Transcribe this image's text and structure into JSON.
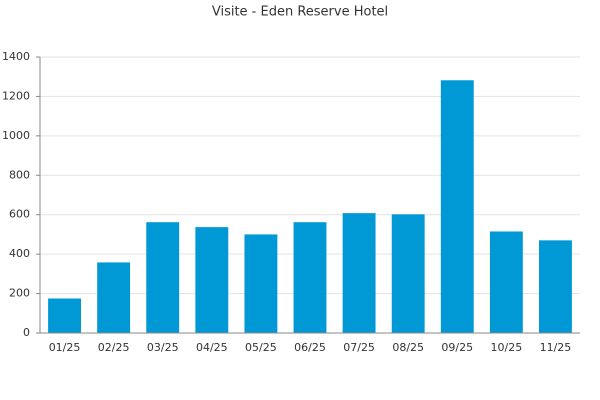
{
  "chart_data": {
    "type": "bar",
    "title": "Visite - Eden Reserve Hotel",
    "categories": [
      "01/25",
      "02/25",
      "03/25",
      "04/25",
      "05/25",
      "06/25",
      "07/25",
      "08/25",
      "09/25",
      "10/25",
      "11/25"
    ],
    "values": [
      175,
      358,
      562,
      537,
      500,
      562,
      608,
      602,
      1282,
      515,
      470
    ],
    "color": "#0099d6",
    "ylim": [
      0,
      1400
    ],
    "yticks": [
      0,
      200,
      400,
      600,
      800,
      1000,
      1200,
      1400
    ],
    "grid": true
  }
}
